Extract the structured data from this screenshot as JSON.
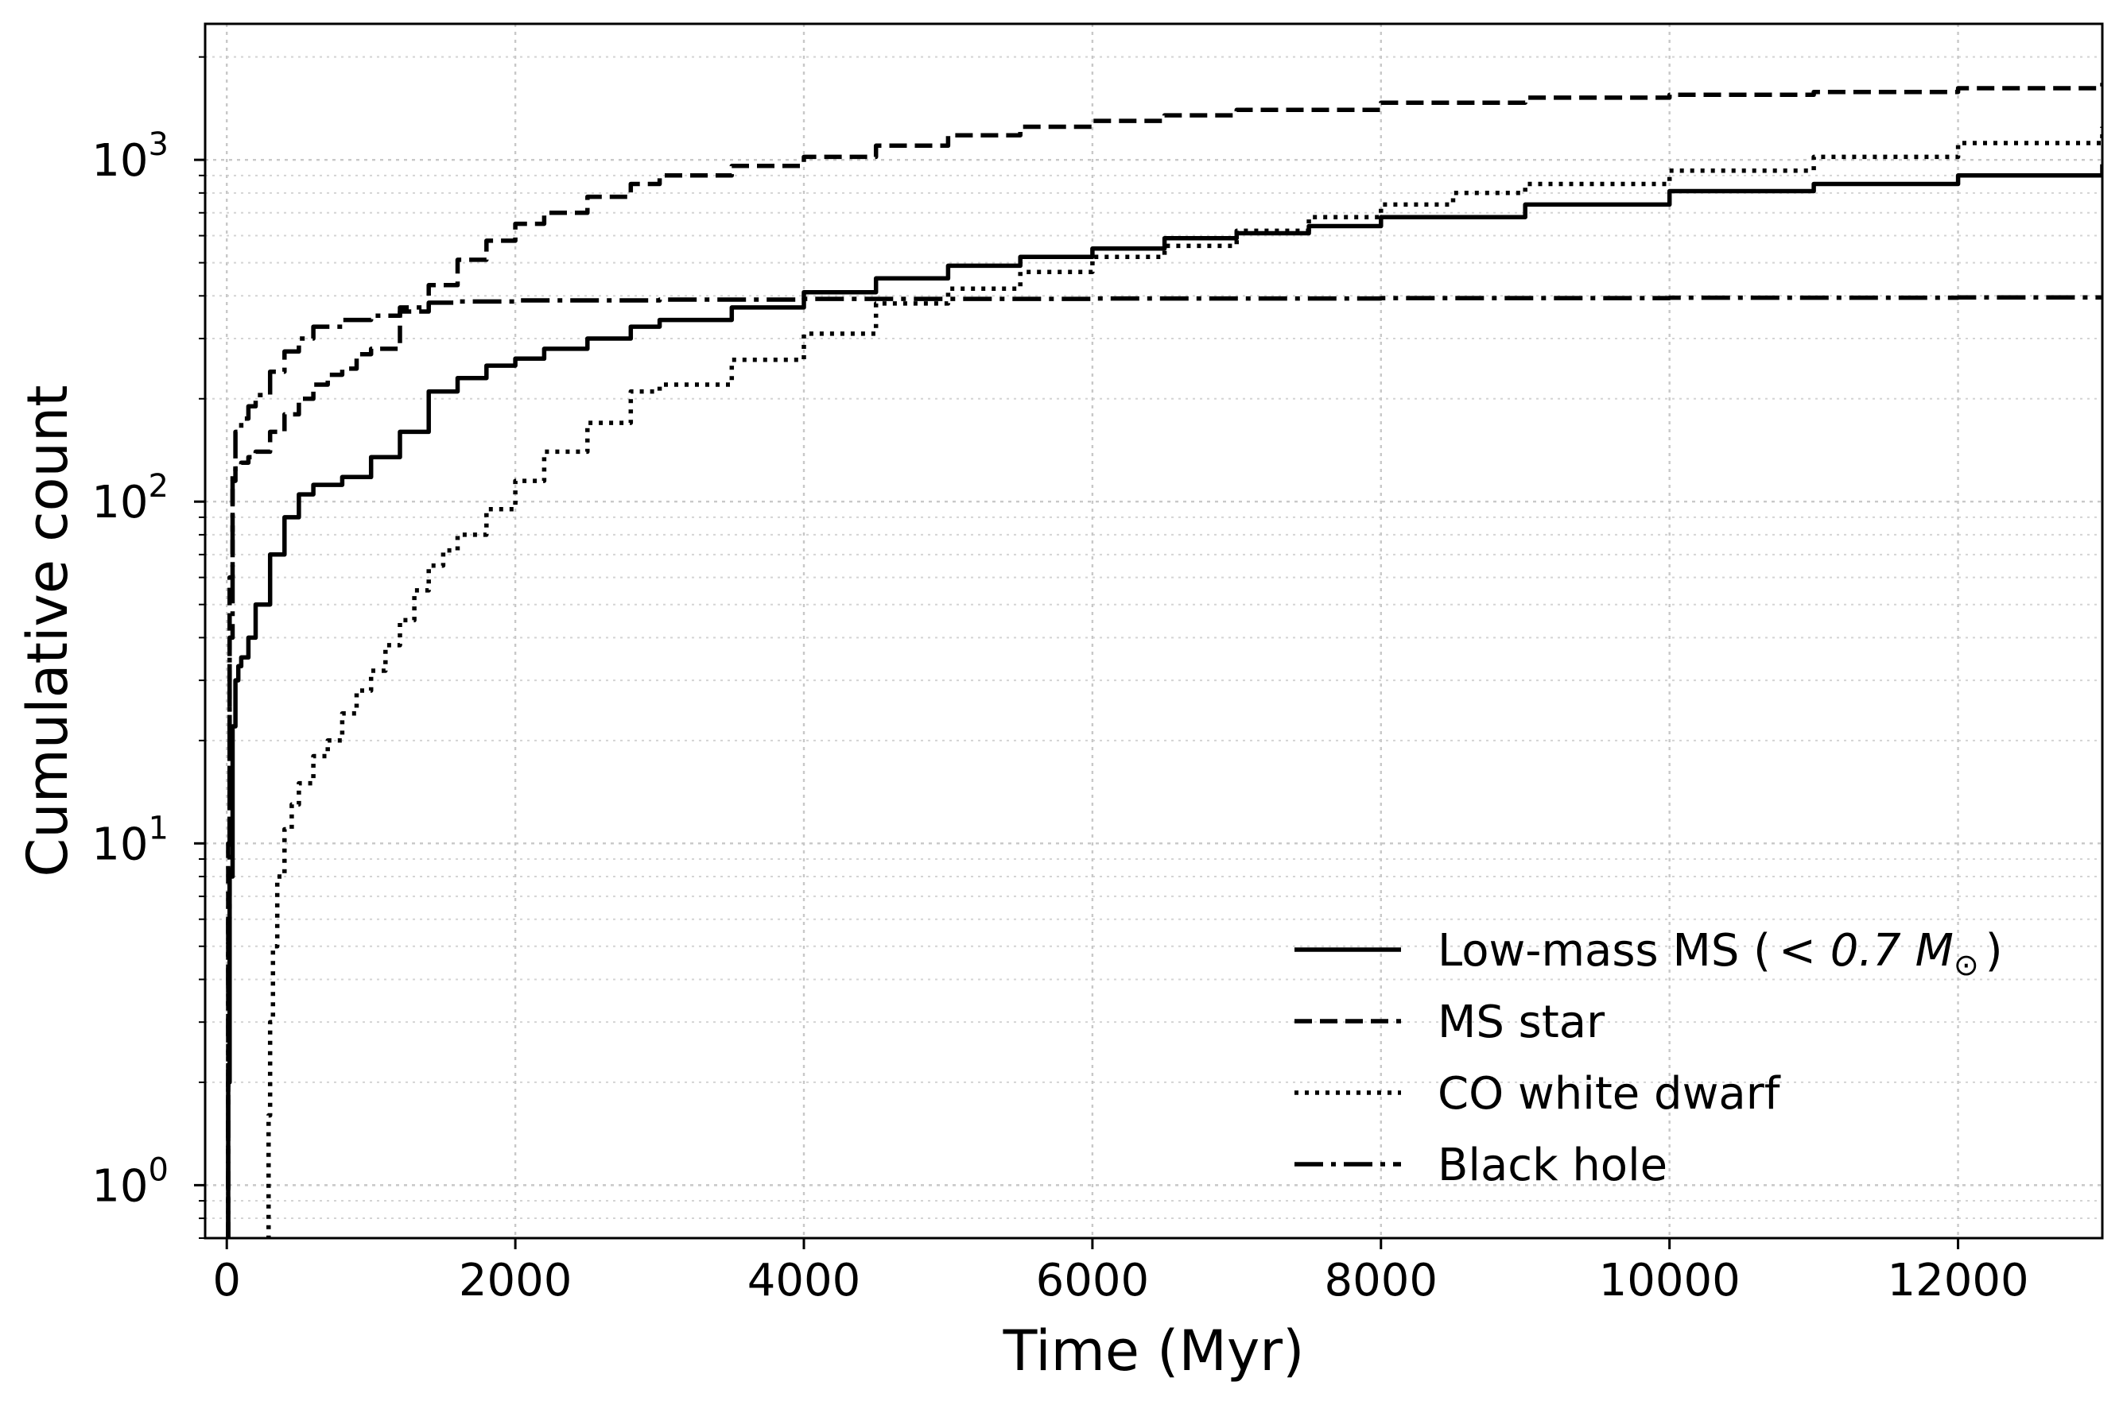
{
  "chart_data": {
    "type": "line",
    "xlabel": "Time (Myr)",
    "ylabel": "Cumulative count",
    "yscale": "log",
    "xlim": [
      -150,
      13000
    ],
    "ylim": [
      0.7,
      2500
    ],
    "grid": true,
    "x_ticks": [
      0,
      2000,
      4000,
      6000,
      8000,
      10000,
      12000
    ],
    "x_tick_labels": [
      "0",
      "2000",
      "4000",
      "6000",
      "8000",
      "10000",
      "12000"
    ],
    "y_ticks": [
      1,
      10,
      100,
      1000
    ],
    "y_tick_base": "10",
    "y_tick_exponents": [
      "0",
      "1",
      "2",
      "3"
    ],
    "legend_position": "lower-right",
    "series": [
      {
        "name": "Low-mass MS (< 0.7 M⊙)",
        "legend_main": "Low-mass MS (",
        "legend_math": "< 0.7 M",
        "legend_sub": "⊙",
        "legend_close": ")",
        "linestyle": "solid",
        "x": [
          0,
          10,
          20,
          40,
          60,
          80,
          100,
          150,
          200,
          300,
          400,
          500,
          600,
          800,
          1000,
          1200,
          1400,
          1600,
          1800,
          2000,
          2200,
          2500,
          2800,
          3000,
          3500,
          4000,
          4500,
          5000,
          5500,
          6000,
          6500,
          7000,
          7500,
          8000,
          9000,
          10000,
          11000,
          12000,
          13000
        ],
        "y": [
          0.7,
          2,
          8,
          22,
          30,
          33,
          35,
          40,
          50,
          70,
          90,
          105,
          112,
          118,
          135,
          160,
          210,
          230,
          250,
          262,
          280,
          300,
          325,
          340,
          370,
          410,
          450,
          490,
          520,
          550,
          590,
          610,
          640,
          680,
          740,
          810,
          850,
          900,
          970
        ]
      },
      {
        "name": "MS star",
        "linestyle": "dashed",
        "x": [
          0,
          10,
          20,
          40,
          60,
          100,
          150,
          200,
          300,
          400,
          500,
          600,
          700,
          800,
          900,
          1000,
          1200,
          1400,
          1600,
          1800,
          2000,
          2200,
          2500,
          2800,
          3000,
          3500,
          4000,
          4500,
          5000,
          5500,
          6000,
          6500,
          7000,
          8000,
          9000,
          10000,
          11000,
          12000,
          13000
        ],
        "y": [
          0.7,
          10,
          60,
          115,
          125,
          130,
          135,
          140,
          160,
          180,
          200,
          220,
          235,
          245,
          270,
          280,
          360,
          430,
          510,
          580,
          650,
          700,
          780,
          850,
          900,
          960,
          1020,
          1100,
          1180,
          1250,
          1300,
          1350,
          1400,
          1470,
          1520,
          1550,
          1580,
          1620,
          1680
        ]
      },
      {
        "name": "CO white dwarf",
        "linestyle": "dotted",
        "x": [
          280,
          290,
          300,
          320,
          350,
          400,
          450,
          500,
          600,
          700,
          800,
          900,
          1000,
          1100,
          1200,
          1300,
          1400,
          1500,
          1600,
          1800,
          2000,
          2200,
          2500,
          2800,
          3000,
          3500,
          4000,
          4500,
          5000,
          5500,
          6000,
          6500,
          7000,
          7500,
          8000,
          8500,
          9000,
          10000,
          11000,
          12000,
          13000
        ],
        "y": [
          0.7,
          1.6,
          3,
          5,
          8,
          11,
          13,
          15,
          18,
          20,
          24,
          28,
          32,
          38,
          45,
          55,
          65,
          72,
          80,
          95,
          115,
          140,
          170,
          210,
          220,
          260,
          310,
          380,
          420,
          470,
          520,
          560,
          620,
          680,
          740,
          800,
          850,
          930,
          1020,
          1120,
          1250
        ]
      },
      {
        "name": "Black hole",
        "linestyle": "dashdot",
        "x": [
          0,
          10,
          20,
          40,
          60,
          100,
          150,
          200,
          300,
          400,
          500,
          600,
          800,
          1000,
          1200,
          1400,
          1600,
          2000,
          3000,
          4000,
          6000,
          8000,
          10000,
          12000,
          13000
        ],
        "y": [
          0.7,
          6,
          40,
          120,
          160,
          175,
          190,
          205,
          240,
          275,
          300,
          325,
          340,
          350,
          370,
          382,
          385,
          388,
          390,
          392,
          393,
          394,
          395,
          396,
          396
        ]
      }
    ]
  }
}
